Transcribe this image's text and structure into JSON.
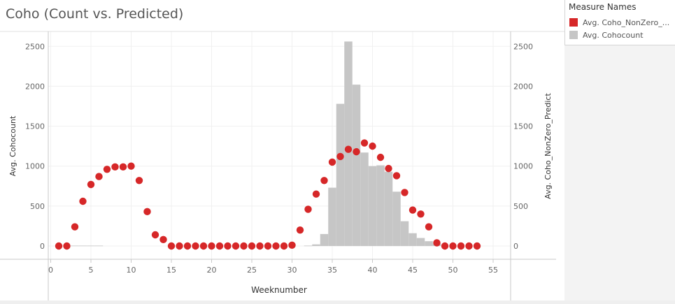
{
  "title": "Coho (Count vs. Predicted)",
  "legend": {
    "title": "Measure Names",
    "items": [
      {
        "label": "Avg. Coho_NonZero_...",
        "color": "#d62728"
      },
      {
        "label": "Avg. Cohocount",
        "color": "#c6c6c6"
      }
    ]
  },
  "chart_data": {
    "type": "bar",
    "title": "Coho (Count vs. Predicted)",
    "xlabel": "Weeknumber",
    "ylabel_left": "Avg. Cohocount",
    "ylabel_right": "Avg. Coho_NonZero_Predict",
    "xlim": [
      0,
      56
    ],
    "ylim": [
      0,
      2700
    ],
    "x_ticks": [
      0,
      5,
      10,
      15,
      20,
      25,
      30,
      35,
      40,
      45,
      50,
      55
    ],
    "y_ticks": [
      0,
      500,
      1000,
      1500,
      2000,
      2500
    ],
    "grid": true,
    "legend_position": "right",
    "series": [
      {
        "name": "Avg. Cohocount",
        "mark": "bar",
        "color": "#c6c6c6",
        "x": [
          3,
          4,
          5,
          6,
          32,
          33,
          34,
          35,
          36,
          37,
          38,
          39,
          40,
          41,
          42,
          43,
          44,
          45,
          46,
          47,
          48
        ],
        "values": [
          5,
          5,
          5,
          5,
          5,
          20,
          150,
          730,
          1780,
          2560,
          2020,
          1170,
          1000,
          1010,
          930,
          680,
          310,
          160,
          100,
          60,
          30
        ]
      },
      {
        "name": "Avg. Coho_NonZero_...",
        "mark": "circle",
        "color": "#d62728",
        "x": [
          1,
          2,
          3,
          4,
          5,
          6,
          7,
          8,
          9,
          10,
          11,
          12,
          13,
          14,
          15,
          16,
          17,
          18,
          19,
          20,
          21,
          22,
          23,
          24,
          25,
          26,
          27,
          28,
          29,
          30,
          31,
          32,
          33,
          34,
          35,
          36,
          37,
          38,
          39,
          40,
          41,
          42,
          43,
          44,
          45,
          46,
          47,
          48,
          49,
          50,
          51,
          52,
          53
        ],
        "values": [
          0,
          0,
          240,
          560,
          770,
          870,
          960,
          990,
          990,
          1000,
          820,
          430,
          140,
          80,
          0,
          0,
          0,
          0,
          0,
          0,
          0,
          0,
          0,
          0,
          0,
          0,
          0,
          0,
          0,
          10,
          200,
          460,
          650,
          820,
          1050,
          1120,
          1210,
          1180,
          1290,
          1250,
          1110,
          970,
          880,
          670,
          450,
          400,
          240,
          40,
          0,
          0,
          0,
          0,
          0
        ]
      }
    ]
  }
}
